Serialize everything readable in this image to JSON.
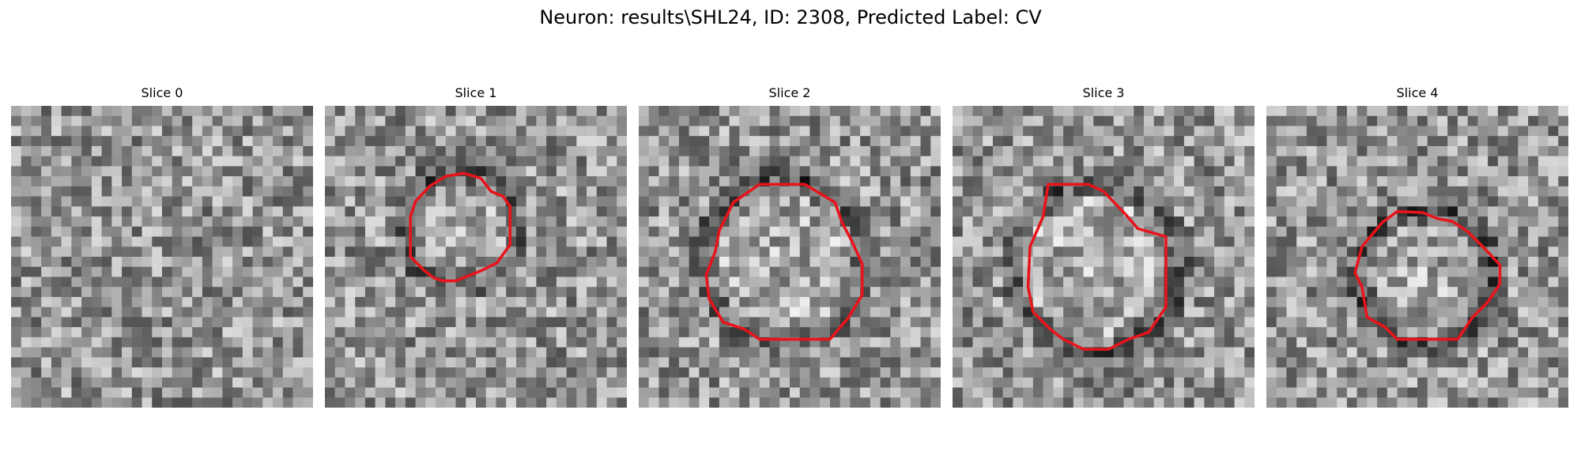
{
  "figure": {
    "title": "Neuron: results\\SHL24, ID: 2308, Predicted Label: CV"
  },
  "colors": {
    "contour": "#e8141c",
    "background": "#ffffff"
  },
  "panels": [
    {
      "title": "Slice 0",
      "has_contour": false
    },
    {
      "title": "Slice 1",
      "has_contour": true
    },
    {
      "title": "Slice 2",
      "has_contour": true
    },
    {
      "title": "Slice 3",
      "has_contour": true
    },
    {
      "title": "Slice 4",
      "has_contour": true
    }
  ]
}
